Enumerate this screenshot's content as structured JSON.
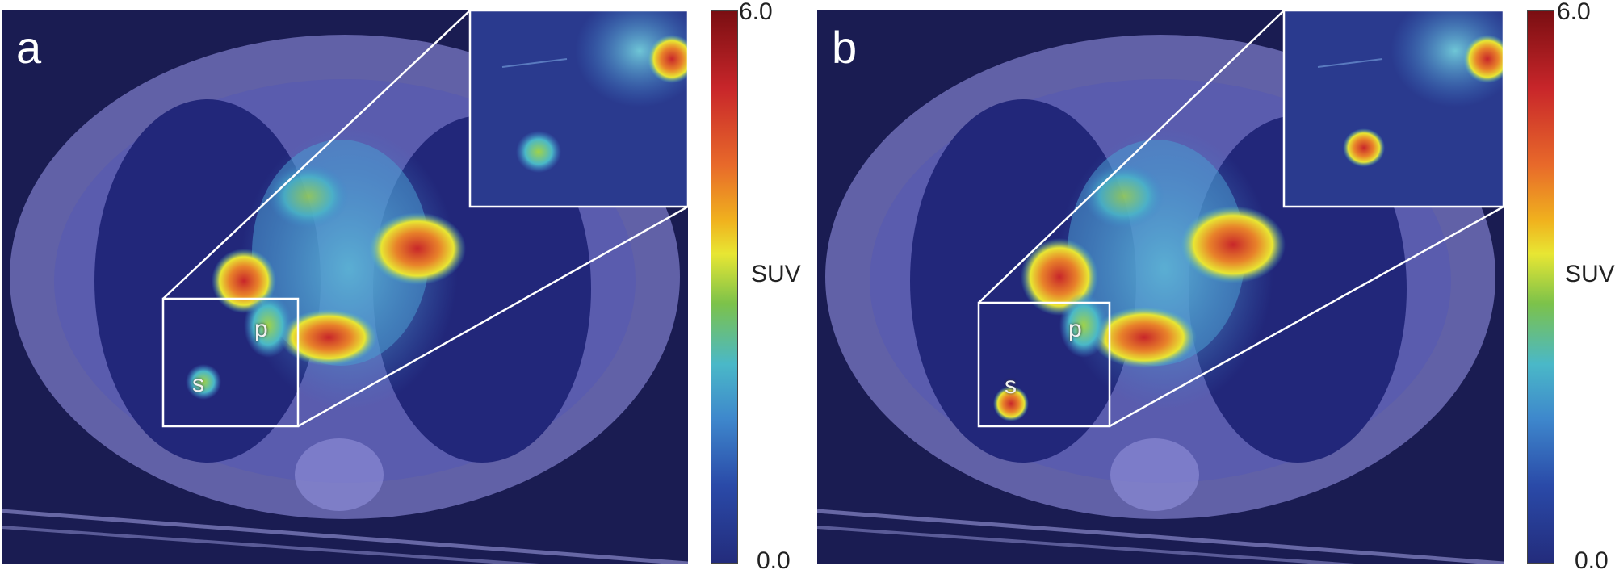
{
  "panels": [
    {
      "letter": "a",
      "label_p": "p",
      "label_s": "s"
    },
    {
      "letter": "b",
      "label_p": "p",
      "label_s": "s"
    }
  ],
  "colorbar": {
    "max_label": "6.0",
    "min_label": "0.0",
    "unit_label": "SUV",
    "colors": [
      "#7a0e12",
      "#c8262a",
      "#e86a2a",
      "#f0b21e",
      "#e8e633",
      "#7cc24a",
      "#4ab8c8",
      "#3e87cc",
      "#2a4aa8",
      "#232c7c"
    ]
  }
}
